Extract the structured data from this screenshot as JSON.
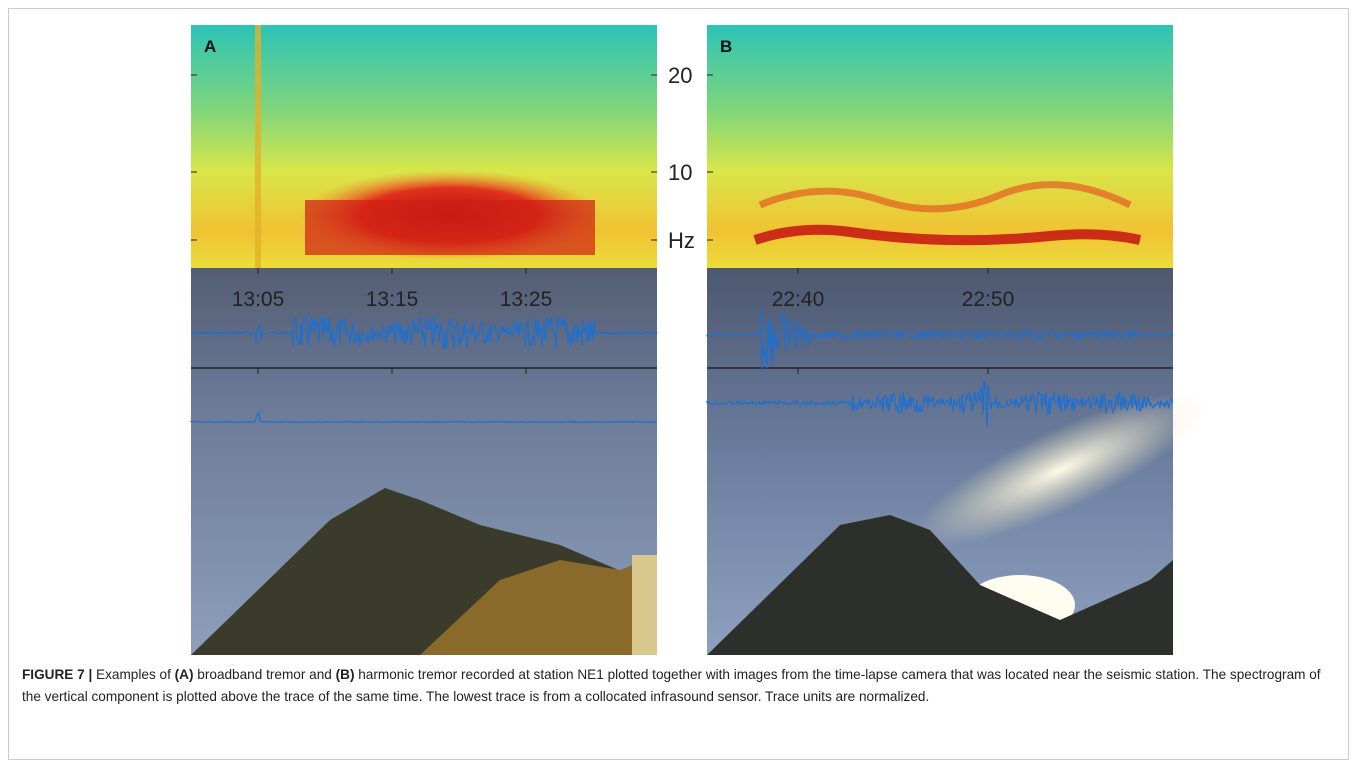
{
  "figure": {
    "panels": [
      {
        "letter": "A",
        "time_labels": [
          "13:05",
          "13:15",
          "13:25"
        ]
      },
      {
        "letter": "B",
        "time_labels": [
          "22:40",
          "22:50"
        ]
      }
    ],
    "freq_labels": [
      "20",
      "10",
      "Hz"
    ],
    "caption": {
      "label": "FIGURE 7 |",
      "segments": [
        " Examples of ",
        "(A)",
        " broadband tremor and ",
        "(B)",
        " harmonic tremor recorded at station NE1 plotted together with images from the time-lapse camera that was located near the seismic station. The spectrogram of the vertical component is plotted above the trace of the same time. The lowest trace is from a collocated infrasound sensor. Trace units are normalized."
      ]
    }
  }
}
